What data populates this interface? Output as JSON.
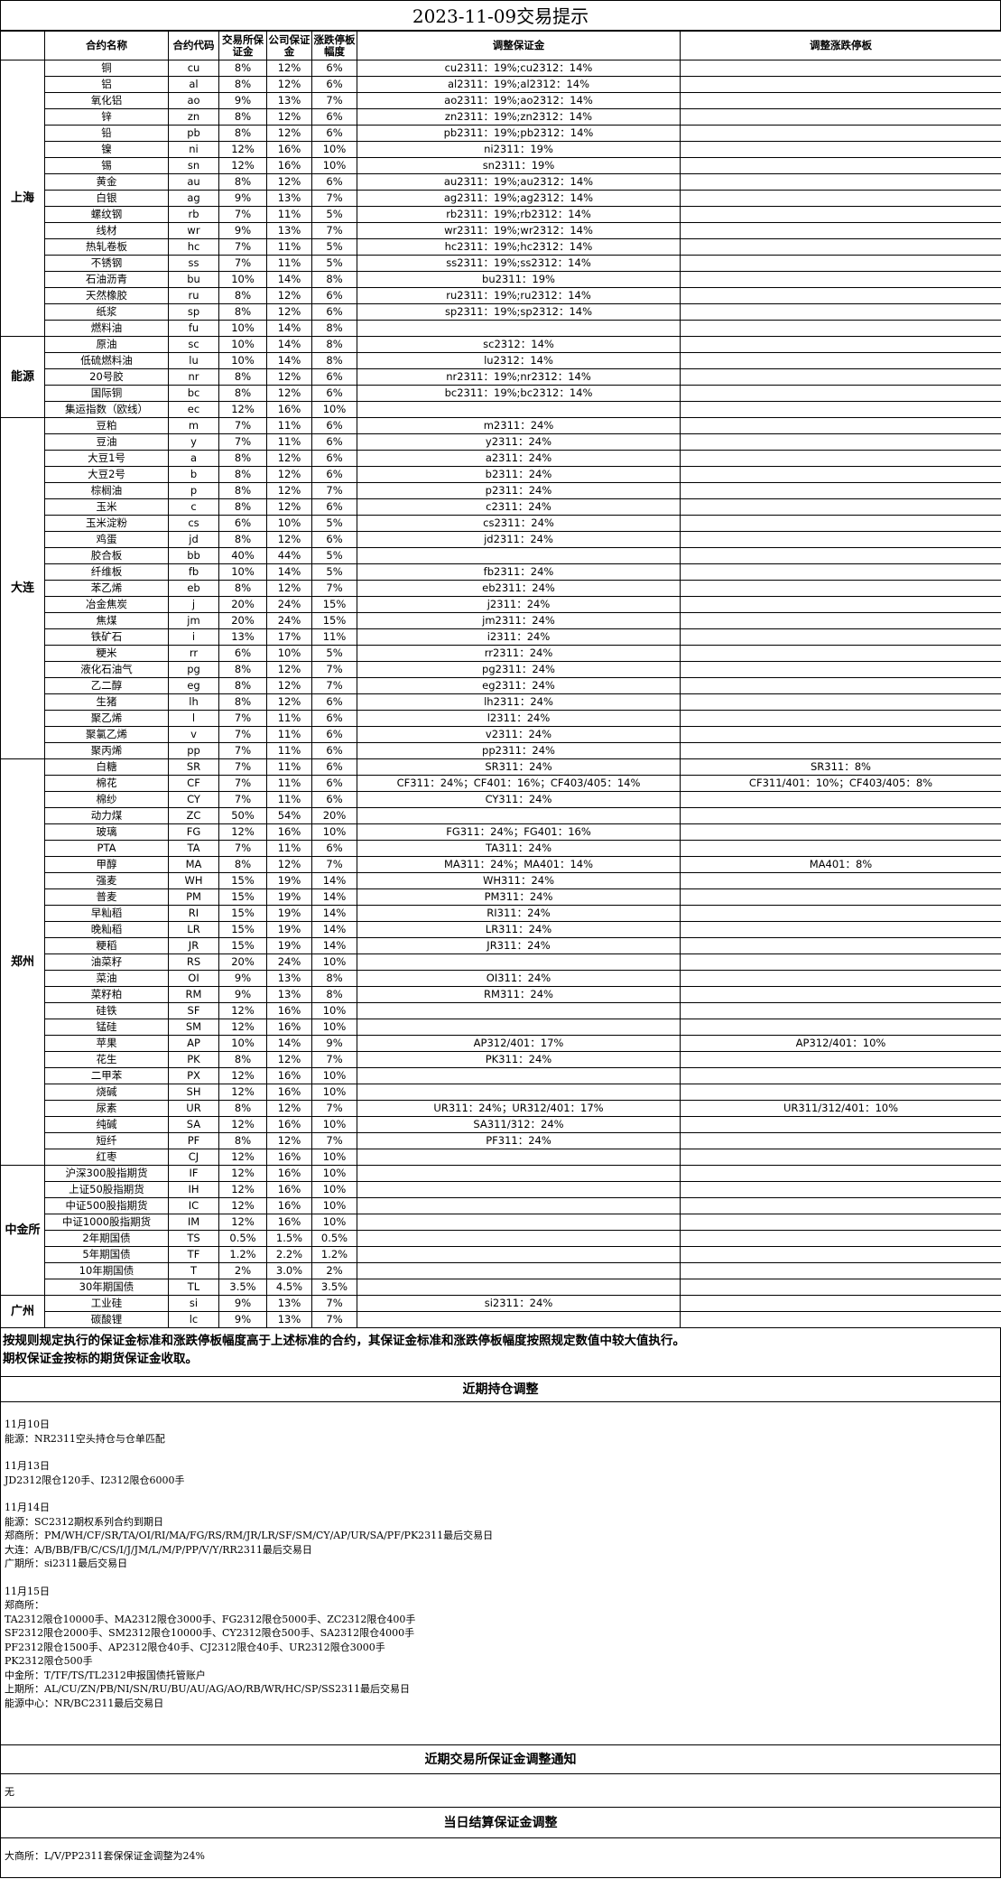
{
  "title": "2023-11-09交易提示",
  "headers": [
    "合约名称",
    "合约代码",
    "交易所保证金",
    "公司保证金",
    "涨跌停板幅度",
    "调整保证金",
    "调整涨跌停板"
  ],
  "regions": [
    {
      "name": "上海",
      "rows": [
        [
          "铜",
          "cu",
          "8%",
          "12%",
          "6%",
          "cu2311：19%;cu2312：14%"
        ],
        [
          "铝",
          "al",
          "8%",
          "12%",
          "6%",
          "al2311：19%;al2312：14%"
        ],
        [
          "氧化铝",
          "ao",
          "9%",
          "13%",
          "7%",
          "ao2311：19%;ao2312：14%"
        ],
        [
          "锌",
          "zn",
          "8%",
          "12%",
          "6%",
          "zn2311：19%;zn2312：14%"
        ],
        [
          "铅",
          "pb",
          "8%",
          "12%",
          "6%",
          "pb2311：19%;pb2312：14%"
        ],
        [
          "镍",
          "ni",
          "12%",
          "16%",
          "10%",
          "ni2311：19%"
        ],
        [
          "锡",
          "sn",
          "12%",
          "16%",
          "10%",
          "sn2311：19%"
        ],
        [
          "黄金",
          "au",
          "8%",
          "12%",
          "6%",
          "au2311：19%;au2312：14%"
        ],
        [
          "白银",
          "ag",
          "9%",
          "13%",
          "7%",
          "ag2311：19%;ag2312：14%"
        ],
        [
          "螺纹钢",
          "rb",
          "7%",
          "11%",
          "5%",
          "rb2311：19%;rb2312：14%"
        ],
        [
          "线材",
          "wr",
          "9%",
          "13%",
          "7%",
          "wr2311：19%;wr2312：14%"
        ],
        [
          "热轧卷板",
          "hc",
          "7%",
          "11%",
          "5%",
          "hc2311：19%;hc2312：14%"
        ],
        [
          "不锈钢",
          "ss",
          "7%",
          "11%",
          "5%",
          "ss2311：19%;ss2312：14%"
        ],
        [
          "石油沥青",
          "bu",
          "10%",
          "14%",
          "8%",
          "bu2311：19%"
        ],
        [
          "天然橡胶",
          "ru",
          "8%",
          "12%",
          "6%",
          "ru2311：19%;ru2312：14%"
        ],
        [
          "纸浆",
          "sp",
          "8%",
          "12%",
          "6%",
          "sp2311：19%;sp2312：14%"
        ],
        [
          "燃料油",
          "fu",
          "10%",
          "14%",
          "8%"
        ]
      ]
    },
    {
      "name": "能源",
      "rows": [
        [
          "原油",
          "sc",
          "10%",
          "14%",
          "8%",
          "sc2312：14%"
        ],
        [
          "低硫燃料油",
          "lu",
          "10%",
          "14%",
          "8%",
          "lu2312：14%"
        ],
        [
          "20号胶",
          "nr",
          "8%",
          "12%",
          "6%",
          "nr2311：19%;nr2312：14%"
        ],
        [
          "国际铜",
          "bc",
          "8%",
          "12%",
          "6%",
          "bc2311：19%;bc2312：14%"
        ],
        [
          "集运指数（欧线）",
          "ec",
          "12%",
          "16%",
          "10%"
        ]
      ]
    },
    {
      "name": "大连",
      "rows": [
        [
          "豆粕",
          "m",
          "7%",
          "11%",
          "6%",
          "m2311：24%"
        ],
        [
          "豆油",
          "y",
          "7%",
          "11%",
          "6%",
          "y2311：24%"
        ],
        [
          "大豆1号",
          "a",
          "8%",
          "12%",
          "6%",
          "a2311：24%"
        ],
        [
          "大豆2号",
          "b",
          "8%",
          "12%",
          "6%",
          "b2311：24%"
        ],
        [
          "棕榈油",
          "p",
          "8%",
          "12%",
          "7%",
          "p2311：24%"
        ],
        [
          "玉米",
          "c",
          "8%",
          "12%",
          "6%",
          "c2311：24%"
        ],
        [
          "玉米淀粉",
          "cs",
          "6%",
          "10%",
          "5%",
          "cs2311：24%"
        ],
        [
          "鸡蛋",
          "jd",
          "8%",
          "12%",
          "6%",
          "jd2311：24%"
        ],
        [
          "胶合板",
          "bb",
          "40%",
          "44%",
          "5%"
        ],
        [
          "纤维板",
          "fb",
          "10%",
          "14%",
          "5%",
          "fb2311：24%"
        ],
        [
          "苯乙烯",
          "eb",
          "8%",
          "12%",
          "7%",
          "eb2311：24%"
        ],
        [
          "冶金焦炭",
          "j",
          "20%",
          "24%",
          "15%",
          "j2311：24%"
        ],
        [
          "焦煤",
          "jm",
          "20%",
          "24%",
          "15%",
          "jm2311：24%"
        ],
        [
          "铁矿石",
          "i",
          "13%",
          "17%",
          "11%",
          "i2311：24%"
        ],
        [
          "粳米",
          "rr",
          "6%",
          "10%",
          "5%",
          "rr2311：24%"
        ],
        [
          "液化石油气",
          "pg",
          "8%",
          "12%",
          "7%",
          "pg2311：24%"
        ],
        [
          "乙二醇",
          "eg",
          "8%",
          "12%",
          "7%",
          "eg2311：24%"
        ],
        [
          "生猪",
          "lh",
          "8%",
          "12%",
          "6%",
          "lh2311：24%"
        ],
        [
          "聚乙烯",
          "l",
          "7%",
          "11%",
          "6%",
          "l2311：24%"
        ],
        [
          "聚氯乙烯",
          "v",
          "7%",
          "11%",
          "6%",
          "v2311：24%"
        ],
        [
          "聚丙烯",
          "pp",
          "7%",
          "11%",
          "6%",
          "pp2311：24%"
        ]
      ]
    },
    {
      "name": "郑州",
      "rows": [
        [
          "白糖",
          "SR",
          "7%",
          "11%",
          "6%",
          "SR311：24%",
          "SR311：8%"
        ],
        [
          "棉花",
          "CF",
          "7%",
          "11%",
          "6%",
          "CF311：24%；CF401：16%；CF403/405：14%",
          "CF311/401：10%；CF403/405：8%"
        ],
        [
          "棉纱",
          "CY",
          "7%",
          "11%",
          "6%",
          "CY311：24%"
        ],
        [
          "动力煤",
          "ZC",
          "50%",
          "54%",
          "20%"
        ],
        [
          "玻璃",
          "FG",
          "12%",
          "16%",
          "10%",
          "FG311：24%；FG401：16%"
        ],
        [
          "PTA",
          "TA",
          "7%",
          "11%",
          "6%",
          "TA311：24%"
        ],
        [
          "甲醇",
          "MA",
          "8%",
          "12%",
          "7%",
          "MA311：24%；MA401：14%",
          "MA401：8%"
        ],
        [
          "强麦",
          "WH",
          "15%",
          "19%",
          "14%",
          "WH311：24%"
        ],
        [
          "普麦",
          "PM",
          "15%",
          "19%",
          "14%",
          "PM311：24%"
        ],
        [
          "早籼稻",
          "RI",
          "15%",
          "19%",
          "14%",
          "RI311：24%"
        ],
        [
          "晚籼稻",
          "LR",
          "15%",
          "19%",
          "14%",
          "LR311：24%"
        ],
        [
          "粳稻",
          "JR",
          "15%",
          "19%",
          "14%",
          "JR311：24%"
        ],
        [
          "油菜籽",
          "RS",
          "20%",
          "24%",
          "10%"
        ],
        [
          "菜油",
          "OI",
          "9%",
          "13%",
          "8%",
          "OI311：24%"
        ],
        [
          "菜籽粕",
          "RM",
          "9%",
          "13%",
          "8%",
          "RM311：24%"
        ],
        [
          "硅铁",
          "SF",
          "12%",
          "16%",
          "10%"
        ],
        [
          "锰硅",
          "SM",
          "12%",
          "16%",
          "10%"
        ],
        [
          "苹果",
          "AP",
          "10%",
          "14%",
          "9%",
          "AP312/401：17%",
          "AP312/401：10%"
        ],
        [
          "花生",
          "PK",
          "8%",
          "12%",
          "7%",
          "PK311：24%"
        ],
        [
          "二甲苯",
          "PX",
          "12%",
          "16%",
          "10%"
        ],
        [
          "烧碱",
          "SH",
          "12%",
          "16%",
          "10%"
        ],
        [
          "尿素",
          "UR",
          "8%",
          "12%",
          "7%",
          "UR311：24%；UR312/401：17%",
          "UR311/312/401：10%"
        ],
        [
          "纯碱",
          "SA",
          "12%",
          "16%",
          "10%",
          "SA311/312：24%"
        ],
        [
          "短纤",
          "PF",
          "8%",
          "12%",
          "7%",
          "PF311：24%"
        ],
        [
          "红枣",
          "CJ",
          "12%",
          "16%",
          "10%"
        ]
      ]
    },
    {
      "name": "中金所",
      "rows": [
        [
          "沪深300股指期货",
          "IF",
          "12%",
          "16%",
          "10%"
        ],
        [
          "上证50股指期货",
          "IH",
          "12%",
          "16%",
          "10%"
        ],
        [
          "中证500股指期货",
          "IC",
          "12%",
          "16%",
          "10%"
        ],
        [
          "中证1000股指期货",
          "IM",
          "12%",
          "16%",
          "10%"
        ],
        [
          "2年期国债",
          "TS",
          "0.5%",
          "1.5%",
          "0.5%"
        ],
        [
          "5年期国债",
          "TF",
          "1.2%",
          "2.2%",
          "1.2%"
        ],
        [
          "10年期国债",
          "T",
          "2%",
          "3.0%",
          "2%"
        ],
        [
          "30年期国债",
          "TL",
          "3.5%",
          "4.5%",
          "3.5%"
        ]
      ]
    },
    {
      "name": "广州",
      "rows": [
        [
          "工业硅",
          "si",
          "9%",
          "13%",
          "7%",
          "si2311：24%"
        ],
        [
          "碳酸锂",
          "lc",
          "9%",
          "13%",
          "7%"
        ]
      ]
    }
  ],
  "note": [
    "按规则规定执行的保证金标准和涨跌停板幅度高于上述标准的合约，其保证金标准和涨跌停板幅度按照规定数值中较大值执行。",
    "期权保证金按标的期货保证金收取。"
  ],
  "sections": [
    {
      "title": "近期持仓调整",
      "groups": [
        {
          "date": "11月10日",
          "lines": [
            "能源：NR2311空头持仓与仓单匹配"
          ]
        },
        {
          "date": "11月13日",
          "lines": [
            "JD2312限仓120手、I2312限仓6000手"
          ]
        },
        {
          "date": "11月14日",
          "lines": [
            "能源：SC2312期权系列合约到期日",
            "郑商所：PM/WH/CF/SR/TA/OI/RI/MA/FG/RS/RM/JR/LR/SF/SM/CY/AP/UR/SA/PF/PK2311最后交易日",
            "大连：A/B/BB/FB/C/CS/I/J/JM/L/M/P/PP/V/Y/RR2311最后交易日",
            "广期所：si2311最后交易日"
          ]
        },
        {
          "date": "11月15日",
          "lines": [
            "郑商所：",
            "TA2312限仓10000手、MA2312限仓3000手、FG2312限仓5000手、ZC2312限仓400手",
            "SF2312限仓2000手、SM2312限仓10000手、CY2312限仓500手、SA2312限仓4000手",
            "PF2312限仓1500手、AP2312限仓40手、CJ2312限仓40手、UR2312限仓3000手",
            "PK2312限仓500手",
            "中金所：T/TF/TS/TL2312申报国债托管账户",
            "上期所：AL/CU/ZN/PB/NI/SN/RU/BU/AU/AG/AO/RB/WR/HC/SP/SS2311最后交易日",
            "能源中心：NR/BC2311最后交易日"
          ]
        }
      ]
    },
    {
      "title": "近期交易所保证金调整通知",
      "lines": [
        "无"
      ]
    },
    {
      "title": "当日结算保证金调整",
      "lines": [
        "大商所：L/V/PP2311套保保证金调整为24%"
      ]
    }
  ]
}
